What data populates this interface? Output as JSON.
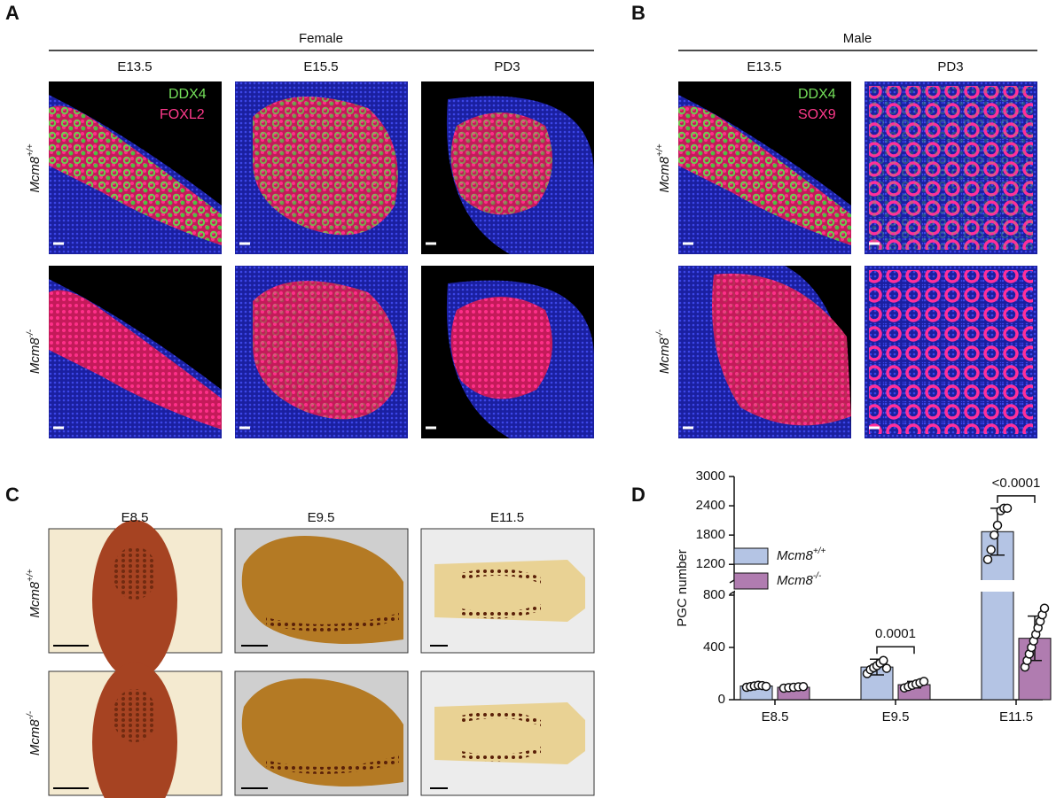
{
  "panels": {
    "A": {
      "label": "A",
      "header": "Female",
      "columns": [
        "E13.5",
        "E15.5",
        "PD3"
      ],
      "markers": [
        "DDX4",
        "FOXL2"
      ]
    },
    "B": {
      "label": "B",
      "header": "Male",
      "columns": [
        "E13.5",
        "PD3"
      ],
      "markers": [
        "DDX4",
        "SOX9"
      ]
    },
    "C": {
      "label": "C",
      "columns": [
        "E8.5",
        "E9.5",
        "E11.5"
      ]
    },
    "D": {
      "label": "D"
    },
    "rows": [
      {
        "gene": "Mcm8",
        "genotype": "+/+"
      },
      {
        "gene": "Mcm8",
        "genotype": "-/-"
      }
    ]
  },
  "chart_data": {
    "type": "bar",
    "ylabel": "PGC number",
    "categories": [
      "E8.5",
      "E9.5",
      "E11.5"
    ],
    "series": [
      {
        "name": "Mcm8",
        "superscript": "+/+",
        "color": "#b4c4e4",
        "values": [
          105,
          250,
          1870
        ],
        "errors": [
          15,
          60,
          480
        ],
        "points": [
          [
            95,
            100,
            105,
            110,
            108,
            102
          ],
          [
            200,
            230,
            245,
            260,
            280,
            300,
            240
          ],
          [
            1300,
            1500,
            1800,
            2000,
            2300,
            2350,
            2350
          ]
        ]
      },
      {
        "name": "Mcm8",
        "superscript": "-/-",
        "color": "#b07cb0",
        "values": [
          95,
          115,
          470
        ],
        "errors": [
          12,
          25,
          170
        ],
        "points": [
          [
            88,
            92,
            95,
            98,
            100
          ],
          [
            90,
            100,
            110,
            120,
            130,
            140
          ],
          [
            250,
            300,
            350,
            400,
            450,
            500,
            550,
            600,
            650,
            700
          ]
        ]
      }
    ],
    "ylim": [
      0,
      3000
    ],
    "ybreak": [
      800,
      950
    ],
    "yticks": [
      0,
      400,
      800,
      1200,
      1800,
      2400,
      3000
    ],
    "annotations": [
      {
        "category": 1,
        "text": "0.0001"
      },
      {
        "category": 2,
        "text": "<0.0001"
      }
    ]
  }
}
